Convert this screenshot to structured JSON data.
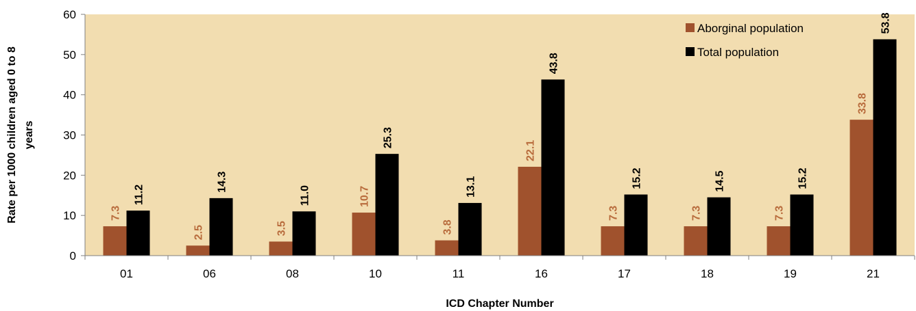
{
  "chart_data": {
    "type": "bar",
    "xlabel": "ICD Chapter Number",
    "ylabel": "Rate per 1000 children aged 0 to 8 years",
    "ylabel_lines": [
      "Rate per 1000 children aged 0 to 8",
      "years"
    ],
    "ylim": [
      0,
      60
    ],
    "yticks": [
      "0",
      "10",
      "20",
      "30",
      "40",
      "50",
      "60"
    ],
    "categories": [
      "01",
      "06",
      "08",
      "10",
      "11",
      "16",
      "17",
      "18",
      "19",
      "21"
    ],
    "grid": false,
    "legend_position": "top-right",
    "plot_background": "#F2DDB0",
    "series": [
      {
        "name": "Aborginal population",
        "color": "#A0522D",
        "label_color": "#B86B3C",
        "values": [
          7.3,
          2.5,
          3.5,
          10.7,
          3.8,
          22.1,
          7.3,
          7.3,
          7.3,
          33.8
        ],
        "labels": [
          "7.3",
          "2.5",
          "3.5",
          "10.7",
          "3.8",
          "22.1",
          "7.3",
          "7.3",
          "7.3",
          "33.8"
        ]
      },
      {
        "name": "Total population",
        "color": "#000000",
        "label_color": "#000000",
        "values": [
          11.2,
          14.3,
          11.0,
          25.3,
          13.1,
          43.8,
          15.2,
          14.5,
          15.2,
          53.8
        ],
        "labels": [
          "11.2",
          "14.3",
          "11.0",
          "25.3",
          "13.1",
          "43.8",
          "15.2",
          "14.5",
          "15.2",
          "53.8"
        ]
      }
    ]
  }
}
